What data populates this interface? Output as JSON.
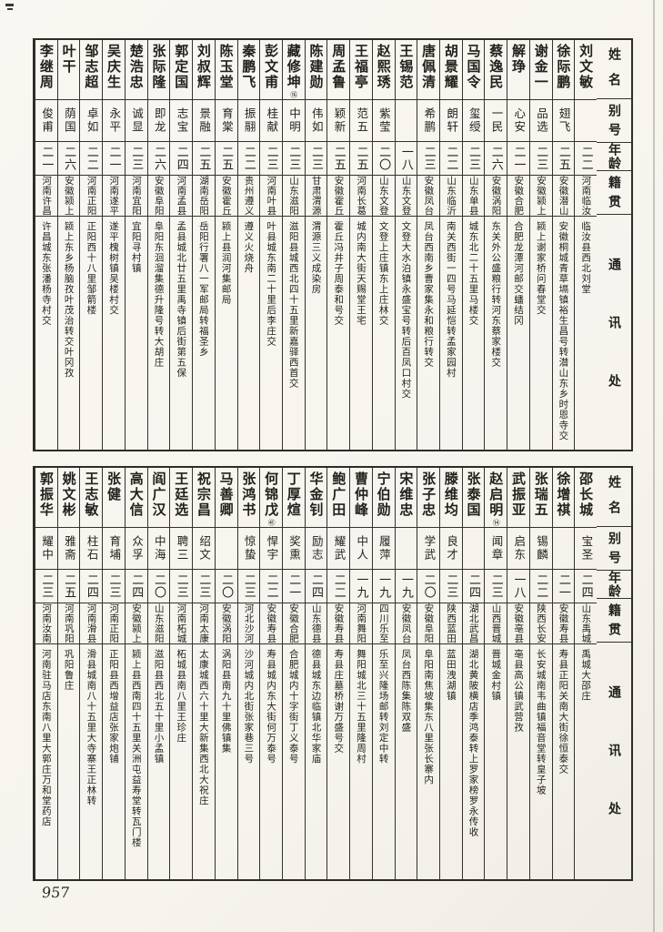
{
  "page": {
    "number": "957"
  },
  "headers": {
    "name": "姓名",
    "alias": "别号",
    "age": "年龄",
    "native": "籍贯",
    "address": "通讯处"
  },
  "tables": [
    {
      "entries": [
        {
          "name": "刘文敏",
          "alias": "",
          "age": "二二",
          "native": "河南临汝",
          "address": "临汝县西北刘堂"
        },
        {
          "name": "徐际鹏",
          "alias": "翅飞",
          "age": "二五",
          "native": "安徽潜山",
          "address": "安徽桐城青草塥镇裕生昌号转潜山东乡时恩寺交"
        },
        {
          "name": "谢金一",
          "alias": "品选",
          "age": "二三",
          "native": "安徽颍上",
          "address": "颍上谢家桥问春堂交"
        },
        {
          "name": "解琤",
          "alias": "心安",
          "age": "二一",
          "native": "安徽合肥",
          "address": "合肥龙潭河邮交蟠结冈"
        },
        {
          "name": "蔡逸民",
          "alias": "一民",
          "age": "二六",
          "native": "安徽涡阳",
          "address": "东关外公盛粮行转河东蔡家楼交"
        },
        {
          "name": "马国令",
          "alias": "玺绶",
          "age": "二三",
          "native": "山东单县",
          "address": "城东北二十五里马楼交"
        },
        {
          "name": "胡景耀",
          "alias": "朗轩",
          "age": "二二",
          "native": "山东临沂",
          "address": "南关西街一四号马延恺转孟家园村"
        },
        {
          "name": "唐佩清",
          "alias": "希鹏",
          "age": "二三",
          "native": "安徽凤台",
          "address": "凤台西南乡曹家集永和粮行转交"
        },
        {
          "name": "王锡范",
          "alias": "",
          "age": "一八",
          "native": "山东文登",
          "address": "文登大水泊镇永盛宝号转后百凤口村交"
        },
        {
          "name": "赵熙琇",
          "alias": "紫莹",
          "age": "二〇",
          "native": "山东文登",
          "address": "文登上庄镇东上庄林交"
        },
        {
          "name": "王福亭",
          "alias": "范五",
          "age": "二五",
          "native": "河南长葛",
          "address": "城内南大街天赐堂王宅"
        },
        {
          "name": "周孟鲁",
          "alias": "颖新",
          "age": "二五",
          "native": "安徽霍丘",
          "address": "霍丘冯井子周泰和号交"
        },
        {
          "name": "陈建勋",
          "alias": "伟如",
          "age": "二三",
          "native": "甘肃渭源",
          "address": "渭源三义成染房"
        },
        {
          "name": "藏修坤",
          "note": "⑯",
          "alias": "中明",
          "age": "二三",
          "native": "山东滋阳",
          "address": "滋阳县城西北四十五里新嘉驿西首交"
        },
        {
          "name": "彭文甫",
          "alias": "桂献",
          "age": "二三",
          "native": "河南叶县",
          "address": "叶县城东南二十里后李庄交"
        },
        {
          "name": "秦鹏飞",
          "alias": "振翮",
          "age": "二二",
          "native": "贵州遵义",
          "address": "遵义火烧舟"
        },
        {
          "name": "陈玉堂",
          "alias": "育棠",
          "age": "二五",
          "native": "安徽霍丘",
          "address": "颍上县润河集邮局"
        },
        {
          "name": "刘叔辉",
          "alias": "景融",
          "age": "二五",
          "native": "湖南岳阳",
          "address": "岳阳行署八一军邮局转福圣乡"
        },
        {
          "name": "郭定国",
          "alias": "志宝",
          "age": "二四",
          "native": "河南孟县",
          "address": "孟县城北廿五里禹寺镇后街第五保"
        },
        {
          "name": "张际隆",
          "alias": "即龙",
          "age": "二六",
          "native": "安徽阜阳",
          "address": "阜阳东洄溜集德升隆号转大胡庄"
        },
        {
          "name": "楚浩忠",
          "alias": "诚显",
          "age": "二三",
          "native": "河南宜阳",
          "address": "宜阳寻村镇"
        },
        {
          "name": "吴庆生",
          "alias": "永平",
          "age": "二一",
          "native": "河南遂平",
          "address": "遂平槐树镇吴楼村交"
        },
        {
          "name": "邹志超",
          "alias": "卓如",
          "age": "二二",
          "native": "河南正阳",
          "address": "正阳西十八里邹箭楼"
        },
        {
          "name": "叶干",
          "alias": "荫国",
          "age": "二六",
          "native": "安徽颍上",
          "address": "颍上东乡杨脑孜叶茂治转交叶冈孜"
        },
        {
          "name": "李继周",
          "alias": "俊甫",
          "age": "二一",
          "native": "河南许昌",
          "address": "许昌城东张潘杨寺村交"
        }
      ]
    },
    {
      "entries": [
        {
          "name": "邵长城",
          "alias": "宝圣",
          "age": "二四",
          "native": "山东禹城",
          "address": "禹城大邵庄"
        },
        {
          "name": "徐增祺",
          "alias": "",
          "age": "二一",
          "native": "安徽寿县",
          "address": "寿县正阳关南大街徐恒泰交"
        },
        {
          "name": "张瑞五",
          "alias": "锡麟",
          "age": "二二",
          "native": "陕西长安",
          "address": "长安城南韦曲镇福音堂转皇子坡"
        },
        {
          "name": "武振亚",
          "alias": "启东",
          "age": "一八",
          "native": "安徽亳县",
          "address": "亳县高公镇武营孜"
        },
        {
          "name": "赵启明",
          "note": "⑭",
          "alias": "闻章",
          "age": "二三",
          "native": "山西晋城",
          "address": "晋城金村镇"
        },
        {
          "name": "张泰国",
          "alias": "",
          "age": "二四",
          "native": "湖北武昌",
          "address": "湖北黄陂横店季鸿泰转上罗家榜罗永传收"
        },
        {
          "name": "滕维均",
          "alias": "良才",
          "age": "二三",
          "native": "陕西蓝田",
          "address": "蓝田洩湖镇"
        },
        {
          "name": "张子忠",
          "alias": "学武",
          "age": "二〇",
          "native": "安徽阜阳",
          "address": "阜阳南焦坡集东八里张长寨内"
        },
        {
          "name": "宋维忠",
          "alias": "",
          "age": "一九",
          "native": "安徽凤台",
          "address": "凤台西陈集陈双盛"
        },
        {
          "name": "宁伯勋",
          "alias": "履萍",
          "age": "一九",
          "native": "四川乐至",
          "address": "乐至兴隆场邮转刘定中转"
        },
        {
          "name": "曹仲峰",
          "alias": "中人",
          "age": "一九",
          "native": "河南舞阳",
          "address": "舞阳城北三十五里隆周村"
        },
        {
          "name": "鲍广田",
          "alias": "耀武",
          "age": "二二",
          "native": "安徽寿县",
          "address": "寿县庄墓桥谢万盛号交"
        },
        {
          "name": "华金钊",
          "alias": "励志",
          "age": "二四",
          "native": "山东德县",
          "address": "德县城东边临镇北华家庙"
        },
        {
          "name": "丁厚煊",
          "alias": "奖熏",
          "age": "二一",
          "native": "安徽合肥",
          "address": "合肥城内十字街丁义泰号"
        },
        {
          "name": "何锦戊",
          "note": "㊶",
          "alias": "悍宇",
          "age": "二二",
          "native": "安徽寿县",
          "address": "寿县城内东大街何万泰号"
        },
        {
          "name": "张鸿书",
          "alias": "惊蛰",
          "age": "二三",
          "native": "河北沙河",
          "address": "沙河城内北街张家巷三号"
        },
        {
          "name": "马善卿",
          "alias": "",
          "age": "二〇",
          "native": "安徽涡阳",
          "address": "涡阳县南九十里佛镇集"
        },
        {
          "name": "祝宗昌",
          "alias": "绍文",
          "age": "二三",
          "native": "河南太康",
          "address": "太康城西六十里大新集西北大祝庄"
        },
        {
          "name": "王廷选",
          "alias": "聘三",
          "age": "二三",
          "native": "河南柘城",
          "address": "柘城县南八里王珍庄"
        },
        {
          "name": "阎广汉",
          "alias": "中海",
          "age": "二〇",
          "native": "山东滋阳",
          "address": "滋阳县西北五十里小孟镇"
        },
        {
          "name": "高大信",
          "alias": "众孚",
          "age": "二四",
          "native": "安徽颍上",
          "address": "颍上县西南四十五里关洲屯益寿堂转瓦门楼"
        },
        {
          "name": "张健",
          "alias": "育埔",
          "age": "二三",
          "native": "河南正阳",
          "address": "正阳县西增益店张家炮铺"
        },
        {
          "name": "王志敏",
          "alias": "柱石",
          "age": "二四",
          "native": "河南滑县",
          "address": "滑县城南八十五里大寺寨王正林转"
        },
        {
          "name": "姚文彬",
          "alias": "雅斋",
          "age": "二五",
          "native": "河南巩阳",
          "address": "巩阳鲁庄"
        },
        {
          "name": "郭振华",
          "alias": "耀中",
          "age": "二三",
          "native": "河南汝南",
          "address": "河南驻马店东南八里大郭庄万和堂药店"
        }
      ]
    }
  ]
}
